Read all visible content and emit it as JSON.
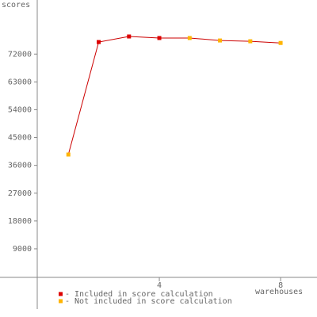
{
  "chart_data": {
    "type": "line",
    "y_label": "scores",
    "x_label": "warehouses",
    "x": [
      1,
      2,
      3,
      4,
      5,
      6,
      7,
      8
    ],
    "line_color": "#cc0000",
    "series": [
      {
        "name": "- Included in score calculation",
        "color": "#dd0000",
        "values": [
          null,
          75900,
          77700,
          77200,
          null,
          null,
          null,
          null
        ]
      },
      {
        "name": "- Not included in score calculation",
        "color": "#ffb400",
        "values": [
          39500,
          null,
          null,
          null,
          77200,
          76400,
          76150,
          75600
        ]
      }
    ],
    "xlim": [
      0,
      9.2
    ],
    "xticks": [
      4,
      8
    ],
    "ylim": [
      -10500,
      89500
    ],
    "yticks": [
      9000,
      18000,
      27000,
      36000,
      45000,
      54000,
      63000,
      72000
    ]
  }
}
